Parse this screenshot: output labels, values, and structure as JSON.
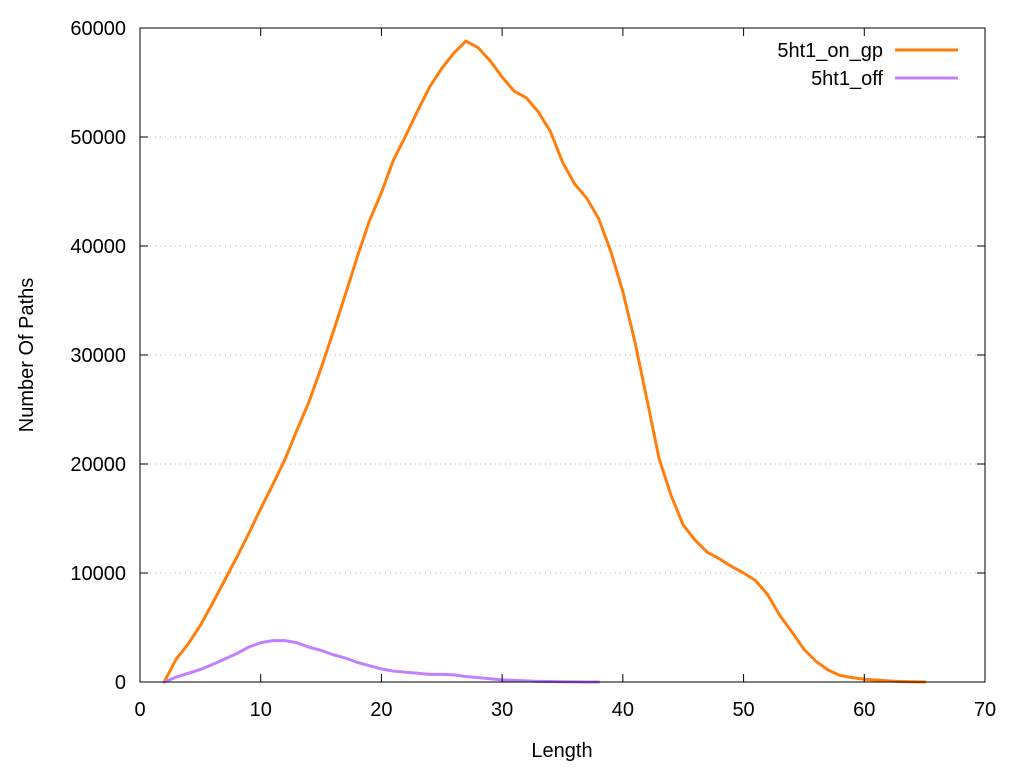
{
  "chart_data": {
    "type": "line",
    "title": "",
    "xlabel": "Length",
    "ylabel": "Number Of Paths",
    "xlim": [
      0,
      70
    ],
    "ylim": [
      0,
      60000
    ],
    "xticks": [
      0,
      10,
      20,
      30,
      40,
      50,
      60,
      70
    ],
    "xtick_labels": [
      "0",
      "10",
      "20",
      "30",
      "40",
      "50",
      "60",
      "70"
    ],
    "yticks": [
      0,
      10000,
      20000,
      30000,
      40000,
      50000,
      60000
    ],
    "ytick_labels": [
      "0",
      "10000",
      "20000",
      "30000",
      "40000",
      "50000",
      "60000"
    ],
    "grid": "horizontal dotted",
    "legend_position": "top-right",
    "series": [
      {
        "name": "5ht1_on_gp",
        "color": "#ff7f0e",
        "x": [
          2,
          3,
          4,
          5,
          6,
          7,
          8,
          9,
          10,
          11,
          12,
          13,
          14,
          15,
          16,
          17,
          18,
          19,
          20,
          21,
          22,
          23,
          24,
          25,
          26,
          27,
          28,
          29,
          30,
          31,
          32,
          33,
          34,
          35,
          36,
          37,
          38,
          39,
          40,
          41,
          42,
          43,
          44,
          45,
          46,
          47,
          48,
          49,
          50,
          51,
          52,
          53,
          54,
          55,
          56,
          57,
          58,
          59,
          60,
          61,
          62,
          63,
          64,
          65
        ],
        "y": [
          0,
          2100,
          3500,
          5200,
          7200,
          9300,
          11400,
          13600,
          15900,
          18100,
          20400,
          23100,
          25700,
          28800,
          32100,
          35500,
          39000,
          42300,
          44900,
          47900,
          50100,
          52400,
          54600,
          56300,
          57700,
          58800,
          58200,
          57000,
          55500,
          54200,
          53600,
          52300,
          50500,
          47700,
          45700,
          44400,
          42500,
          39500,
          35800,
          31200,
          25900,
          20500,
          17100,
          14400,
          13000,
          11900,
          11300,
          10600,
          10000,
          9300,
          8000,
          6100,
          4600,
          3000,
          1900,
          1100,
          600,
          400,
          250,
          180,
          100,
          50,
          20,
          0
        ]
      },
      {
        "name": "5ht1_off",
        "color": "#c080ff",
        "x": [
          2,
          3,
          4,
          5,
          6,
          7,
          8,
          9,
          10,
          11,
          12,
          13,
          14,
          15,
          16,
          17,
          18,
          19,
          20,
          21,
          22,
          23,
          24,
          25,
          26,
          27,
          28,
          29,
          30,
          31,
          32,
          33,
          34,
          35,
          36,
          37,
          38
        ],
        "y": [
          0,
          450,
          800,
          1150,
          1600,
          2100,
          2600,
          3200,
          3600,
          3800,
          3800,
          3600,
          3200,
          2900,
          2500,
          2200,
          1800,
          1500,
          1200,
          1000,
          900,
          800,
          700,
          700,
          650,
          500,
          400,
          300,
          200,
          150,
          100,
          60,
          40,
          20,
          10,
          5,
          0
        ]
      }
    ]
  }
}
